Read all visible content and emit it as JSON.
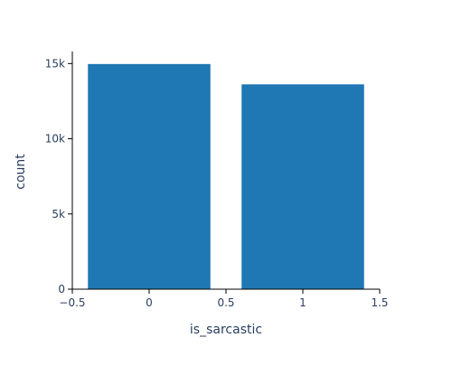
{
  "chart_data": {
    "type": "bar",
    "title": "",
    "xlabel": "is_sarcastic",
    "ylabel": "count",
    "x": [
      0,
      1
    ],
    "values": [
      14985,
      13634
    ],
    "bar_width": 0.8,
    "xlim": [
      -0.5,
      1.5
    ],
    "ylim": [
      0,
      15800
    ],
    "x_ticks": [
      -0.5,
      0,
      0.5,
      1,
      1.5
    ],
    "x_tick_labels": [
      "−0.5",
      "0",
      "0.5",
      "1",
      "1.5"
    ],
    "y_ticks": [
      0,
      5000,
      10000,
      15000
    ],
    "y_tick_labels": [
      "0",
      "5k",
      "10k",
      "15k"
    ],
    "grid": false,
    "legend": "none",
    "bar_color": "#1f77b4",
    "bar_edge_color": "#ffffff"
  }
}
